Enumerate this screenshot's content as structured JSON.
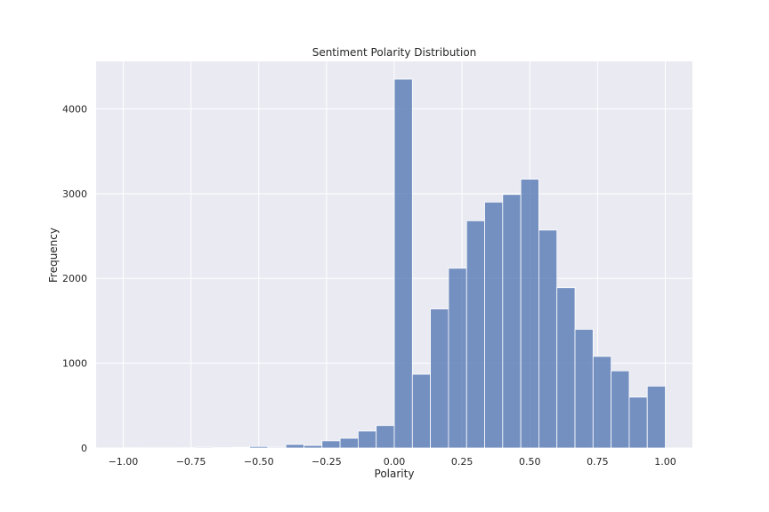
{
  "chart_data": {
    "type": "bar",
    "title": "Sentiment Polarity Distribution",
    "xlabel": "Polarity",
    "ylabel": "Frequency",
    "xlim": [
      -1.1,
      1.1
    ],
    "ylim": [
      0,
      4560
    ],
    "x_ticks": [
      {
        "value": -1.0,
        "label": "−1.00"
      },
      {
        "value": -0.75,
        "label": "−0.75"
      },
      {
        "value": -0.5,
        "label": "−0.50"
      },
      {
        "value": -0.25,
        "label": "−0.25"
      },
      {
        "value": 0.0,
        "label": "0.00"
      },
      {
        "value": 0.25,
        "label": "0.25"
      },
      {
        "value": 0.5,
        "label": "0.50"
      },
      {
        "value": 0.75,
        "label": "0.75"
      },
      {
        "value": 1.0,
        "label": "1.00"
      }
    ],
    "y_ticks": [
      {
        "value": 0,
        "label": "0"
      },
      {
        "value": 1000,
        "label": "1000"
      },
      {
        "value": 2000,
        "label": "2000"
      },
      {
        "value": 3000,
        "label": "3000"
      },
      {
        "value": 4000,
        "label": "4000"
      }
    ],
    "grid": true,
    "bar_color": "#4c72b0",
    "background_color": "#eaeaf2",
    "bins": [
      {
        "start": -1.0,
        "end": -0.9333,
        "value": 3
      },
      {
        "start": -0.9333,
        "end": -0.8667,
        "value": 2
      },
      {
        "start": -0.8667,
        "end": -0.8,
        "value": 2
      },
      {
        "start": -0.8,
        "end": -0.7333,
        "value": 3
      },
      {
        "start": -0.7333,
        "end": -0.6667,
        "value": 10
      },
      {
        "start": -0.6667,
        "end": -0.6,
        "value": 4
      },
      {
        "start": -0.6,
        "end": -0.5333,
        "value": 8
      },
      {
        "start": -0.5333,
        "end": -0.4667,
        "value": 18
      },
      {
        "start": -0.4667,
        "end": -0.4,
        "value": 10
      },
      {
        "start": -0.4,
        "end": -0.3333,
        "value": 42
      },
      {
        "start": -0.3333,
        "end": -0.2667,
        "value": 30
      },
      {
        "start": -0.2667,
        "end": -0.2,
        "value": 85
      },
      {
        "start": -0.2,
        "end": -0.1333,
        "value": 115
      },
      {
        "start": -0.1333,
        "end": -0.0667,
        "value": 200
      },
      {
        "start": -0.0667,
        "end": 0.0,
        "value": 265
      },
      {
        "start": 0.0,
        "end": 0.0667,
        "value": 4350
      },
      {
        "start": 0.0667,
        "end": 0.1333,
        "value": 870
      },
      {
        "start": 0.1333,
        "end": 0.2,
        "value": 1640
      },
      {
        "start": 0.2,
        "end": 0.2667,
        "value": 2120
      },
      {
        "start": 0.2667,
        "end": 0.3333,
        "value": 2680
      },
      {
        "start": 0.3333,
        "end": 0.4,
        "value": 2900
      },
      {
        "start": 0.4,
        "end": 0.4667,
        "value": 2990
      },
      {
        "start": 0.4667,
        "end": 0.5333,
        "value": 3170
      },
      {
        "start": 0.5333,
        "end": 0.6,
        "value": 2570
      },
      {
        "start": 0.6,
        "end": 0.6667,
        "value": 1890
      },
      {
        "start": 0.6667,
        "end": 0.7333,
        "value": 1400
      },
      {
        "start": 0.7333,
        "end": 0.8,
        "value": 1080
      },
      {
        "start": 0.8,
        "end": 0.8667,
        "value": 910
      },
      {
        "start": 0.8667,
        "end": 0.9333,
        "value": 600
      },
      {
        "start": 0.9333,
        "end": 1.0,
        "value": 730
      }
    ]
  }
}
